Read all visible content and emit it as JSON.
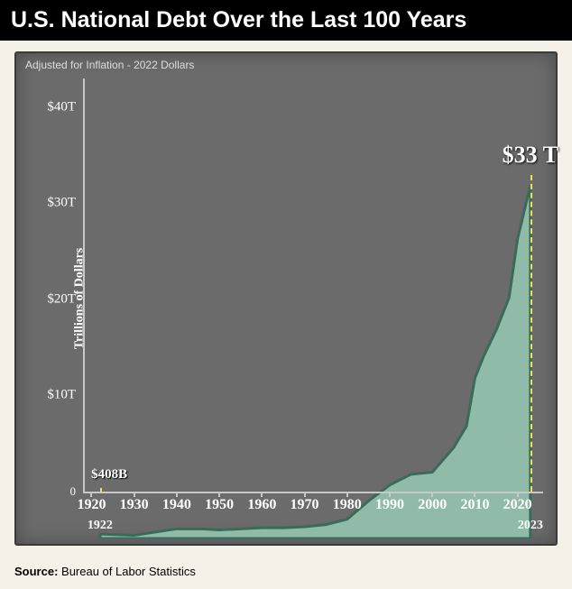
{
  "title": "U.S. National Debt Over the Last 100 Years",
  "subtitle": "Adjusted for Inflation - 2022 Dollars",
  "source_label": "Source:",
  "source_value": " Bureau of Labor Statistics",
  "chart": {
    "type": "area",
    "y_label": "Trillions of Dollars",
    "y_ticks": [
      {
        "value": 0,
        "label": "0"
      },
      {
        "value": 10,
        "label": "$10T"
      },
      {
        "value": 20,
        "label": "$20T"
      },
      {
        "value": 30,
        "label": "$30T"
      },
      {
        "value": 40,
        "label": "$40T"
      }
    ],
    "ylim": [
      0,
      43
    ],
    "x_ticks": [
      {
        "value": 1920,
        "label": "1920"
      },
      {
        "value": 1930,
        "label": "1930"
      },
      {
        "value": 1940,
        "label": "1940"
      },
      {
        "value": 1950,
        "label": "1950"
      },
      {
        "value": 1960,
        "label": "1960"
      },
      {
        "value": 1970,
        "label": "1970"
      },
      {
        "value": 1980,
        "label": "1980"
      },
      {
        "value": 1990,
        "label": "1990"
      },
      {
        "value": 2000,
        "label": "2000"
      },
      {
        "value": 2010,
        "label": "2010"
      },
      {
        "value": 2020,
        "label": "2020"
      }
    ],
    "x_sub_labels": [
      {
        "value": 1922,
        "label": "1922"
      },
      {
        "value": 2023,
        "label": "2023"
      }
    ],
    "xlim": [
      1918,
      2026
    ],
    "start_marker": {
      "year": 1922,
      "value": 0.408,
      "label": "$408B"
    },
    "end_marker": {
      "year": 2023,
      "value": 33,
      "label": "$33 T"
    },
    "vline_color": "#f0e050",
    "fill_color": "#8fbba8",
    "fill_edge_color": "#3a6b5a",
    "background_color": "#6b6b6b",
    "axis_color": "#c8c8c8",
    "text_color": "#ffffff",
    "page_background": "#f5f1e8",
    "title_fontsize": 25,
    "subtitle_fontsize": 12,
    "callout_end_fontsize": 26,
    "callout_start_fontsize": 15,
    "data": [
      {
        "year": 1922,
        "value": 0.408
      },
      {
        "year": 1930,
        "value": 0.3
      },
      {
        "year": 1940,
        "value": 0.9
      },
      {
        "year": 1946,
        "value": 0.9
      },
      {
        "year": 1950,
        "value": 0.8
      },
      {
        "year": 1955,
        "value": 0.9
      },
      {
        "year": 1960,
        "value": 1.0
      },
      {
        "year": 1965,
        "value": 1.0
      },
      {
        "year": 1970,
        "value": 1.1
      },
      {
        "year": 1975,
        "value": 1.3
      },
      {
        "year": 1980,
        "value": 1.8
      },
      {
        "year": 1985,
        "value": 3.5
      },
      {
        "year": 1990,
        "value": 5.0
      },
      {
        "year": 1995,
        "value": 6.0
      },
      {
        "year": 2000,
        "value": 6.2
      },
      {
        "year": 2005,
        "value": 8.5
      },
      {
        "year": 2008,
        "value": 10.5
      },
      {
        "year": 2010,
        "value": 15.0
      },
      {
        "year": 2012,
        "value": 17.0
      },
      {
        "year": 2015,
        "value": 19.5
      },
      {
        "year": 2018,
        "value": 22.5
      },
      {
        "year": 2020,
        "value": 28.0
      },
      {
        "year": 2023,
        "value": 33.0
      }
    ]
  }
}
